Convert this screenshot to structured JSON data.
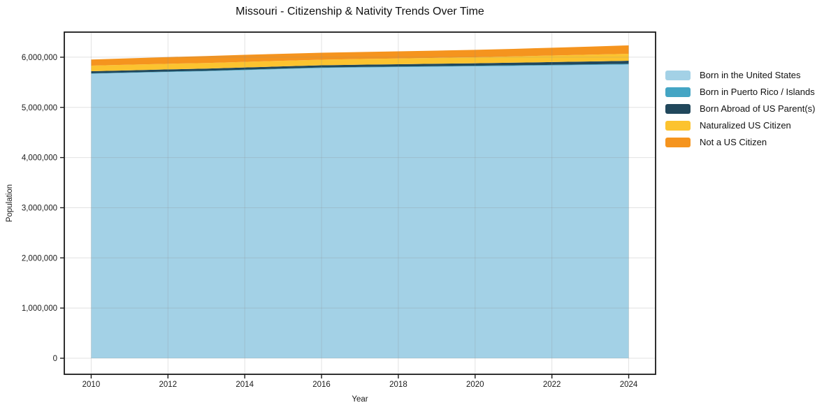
{
  "chart_data": {
    "type": "area",
    "stacked": true,
    "title": "Missouri - Citizenship & Nativity Trends Over Time",
    "xlabel": "Year",
    "ylabel": "Population",
    "x": [
      2010,
      2011,
      2012,
      2013,
      2014,
      2015,
      2016,
      2017,
      2018,
      2019,
      2020,
      2021,
      2022,
      2023,
      2024
    ],
    "series": [
      {
        "name": "Born in the United States",
        "color": "#a3d1e6",
        "values": [
          5670000,
          5688000,
          5705000,
          5720000,
          5742000,
          5764000,
          5785000,
          5795000,
          5803000,
          5811000,
          5818000,
          5827000,
          5836000,
          5845000,
          5855000
        ]
      },
      {
        "name": "Born in Puerto Rico / Islands",
        "color": "#44a5c4",
        "values": [
          9000,
          9000,
          9500,
          9500,
          10000,
          10000,
          10500,
          10500,
          11000,
          11000,
          11500,
          11500,
          12000,
          12500,
          13000
        ]
      },
      {
        "name": "Born Abroad of US Parent(s)",
        "color": "#21485c",
        "values": [
          41000,
          41500,
          42000,
          42500,
          43000,
          43500,
          44000,
          45000,
          46000,
          47500,
          49000,
          52000,
          55000,
          58000,
          61000
        ]
      },
      {
        "name": "Naturalized US Citizen",
        "color": "#fcc32f",
        "values": [
          112000,
          112000,
          112500,
          113000,
          112500,
          112000,
          111500,
          113000,
          115000,
          118000,
          121000,
          125000,
          130000,
          135000,
          140000
        ]
      },
      {
        "name": "Not a US Citizen",
        "color": "#f5941e",
        "values": [
          121000,
          128000,
          134000,
          139000,
          140000,
          139500,
          139000,
          140000,
          142000,
          144500,
          147000,
          151000,
          156000,
          161000,
          167000
        ]
      }
    ],
    "xlim": [
      2009.3,
      2024.7
    ],
    "ylim": [
      -320000,
      6500000
    ],
    "xticks": [
      2010,
      2012,
      2014,
      2016,
      2018,
      2020,
      2022,
      2024
    ],
    "yticks": [
      0,
      1000000,
      2000000,
      3000000,
      4000000,
      5000000,
      6000000
    ],
    "grid": true,
    "legend_position": "right"
  }
}
